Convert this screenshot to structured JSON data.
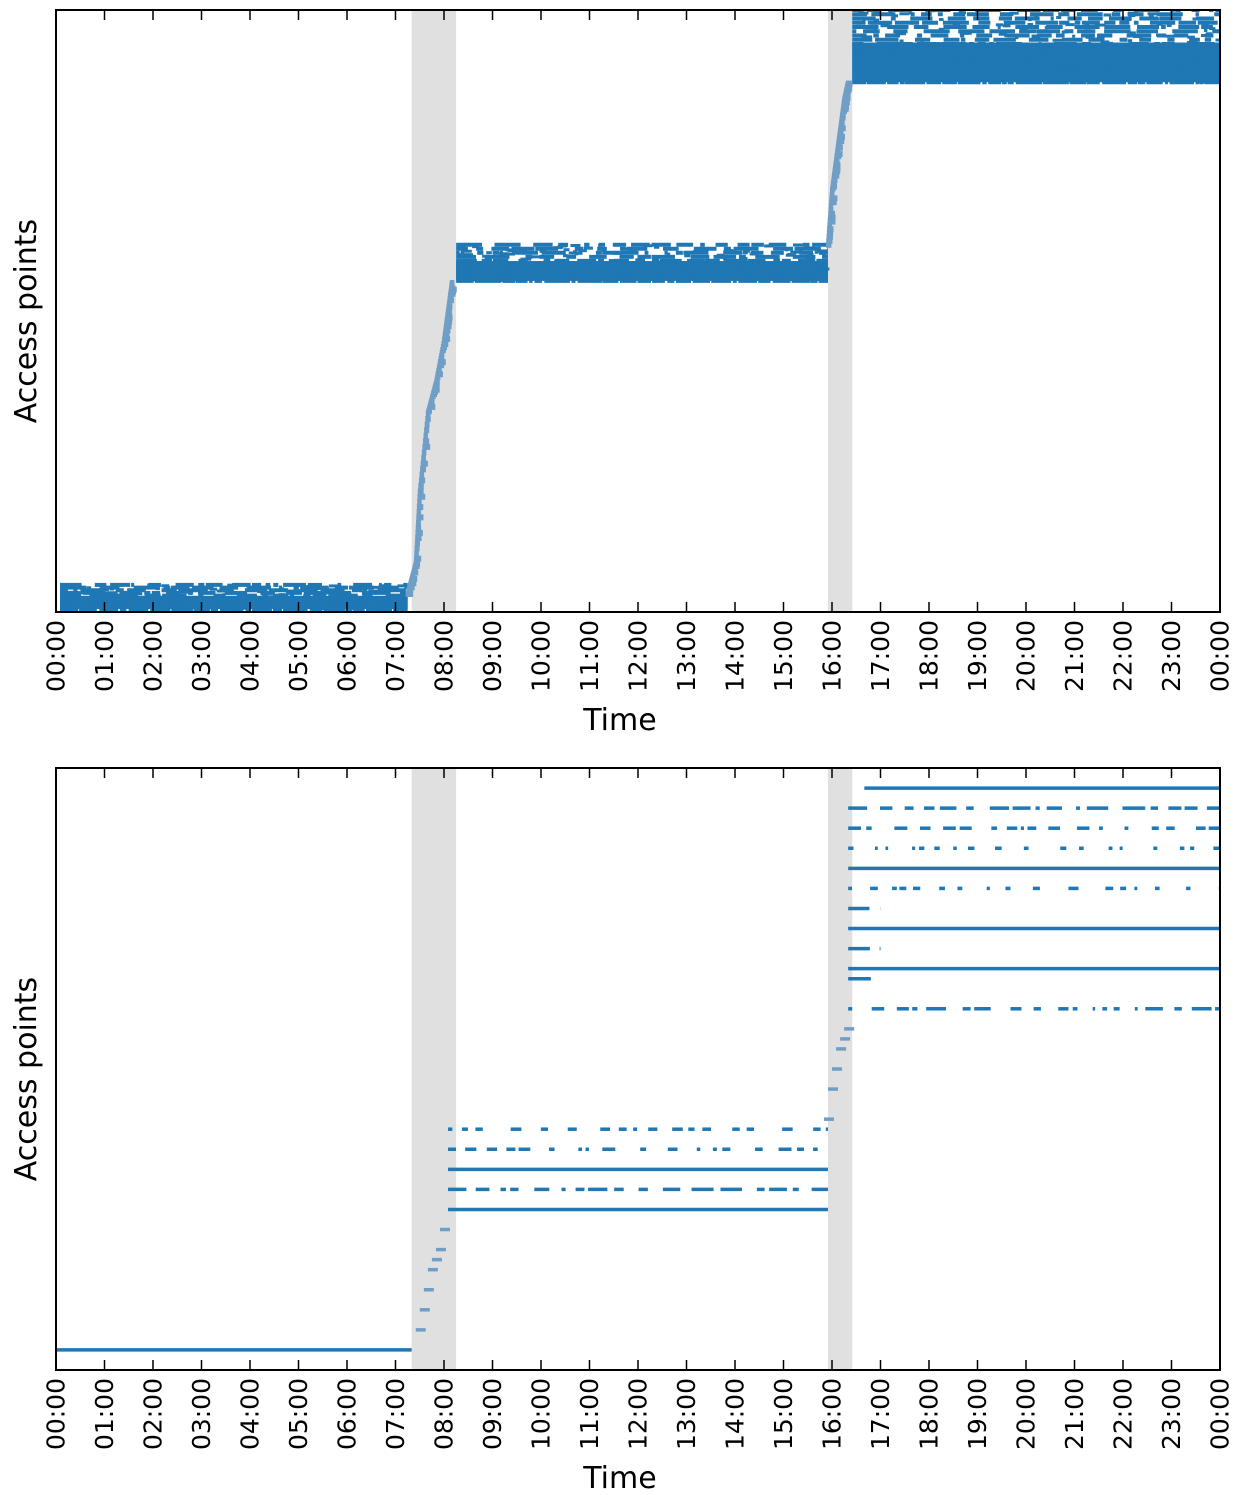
{
  "chart_data": [
    {
      "type": "scatter",
      "title": "",
      "xlabel": "Time",
      "ylabel": "Access points",
      "xlim": [
        "00:00",
        "24:00"
      ],
      "x_tick_labels": [
        "00:00",
        "01:00",
        "02:00",
        "03:00",
        "04:00",
        "05:00",
        "06:00",
        "07:00",
        "08:00",
        "09:00",
        "10:00",
        "11:00",
        "12:00",
        "13:00",
        "14:00",
        "15:00",
        "16:00",
        "17:00",
        "18:00",
        "19:00",
        "20:00",
        "21:00",
        "22:00",
        "23:00",
        "00:00"
      ],
      "y_ticks_shown": false,
      "grid": false,
      "legend": "none",
      "shaded_intervals": [
        [
          "07:20",
          "08:15"
        ],
        [
          "15:55",
          "16:25"
        ]
      ],
      "shade_color": "#e0e0e0",
      "point_color": "#1f77b4",
      "transition_color": "#6f9fc6",
      "bands": [
        {
          "x": [
            "00:05",
            "07:15"
          ],
          "y": [
            0.5,
            4.5
          ],
          "rows": 10
        },
        {
          "x": [
            "08:15",
            "15:55"
          ],
          "y": [
            55,
            61
          ],
          "rows": 10
        },
        {
          "x": [
            "16:25",
            "24:00"
          ],
          "y": [
            88,
            100
          ],
          "rows": 18
        }
      ],
      "transition_curves": [
        [
          [
            "07:15",
            3
          ],
          [
            "07:25",
            8
          ],
          [
            "07:30",
            20
          ],
          [
            "07:40",
            33
          ],
          [
            "07:50",
            38
          ],
          [
            "08:00",
            45
          ],
          [
            "08:05",
            50
          ],
          [
            "08:10",
            55
          ]
        ],
        [
          [
            "15:55",
            61
          ],
          [
            "16:00",
            70
          ],
          [
            "16:05",
            75
          ],
          [
            "16:10",
            80
          ],
          [
            "16:15",
            85
          ],
          [
            "16:20",
            88
          ]
        ]
      ],
      "y_range": [
        0,
        100
      ]
    },
    {
      "type": "scatter",
      "title": "",
      "xlabel": "Time",
      "ylabel": "Access points",
      "xlim": [
        "00:00",
        "24:00"
      ],
      "x_tick_labels": [
        "00:00",
        "01:00",
        "02:00",
        "03:00",
        "04:00",
        "05:00",
        "06:00",
        "07:00",
        "08:00",
        "09:00",
        "10:00",
        "11:00",
        "12:00",
        "13:00",
        "14:00",
        "15:00",
        "16:00",
        "17:00",
        "18:00",
        "19:00",
        "20:00",
        "21:00",
        "22:00",
        "23:00",
        "00:00"
      ],
      "y_ticks_shown": false,
      "grid": false,
      "legend": "none",
      "shaded_intervals": [
        [
          "07:20",
          "08:15"
        ],
        [
          "15:55",
          "16:25"
        ]
      ],
      "shade_color": "#e0e0e0",
      "point_color": "#1f77b4",
      "transition_color": "#6f9fc6",
      "y_range": [
        0,
        30
      ],
      "rows": [
        {
          "y": 1,
          "x": [
            "00:00",
            "07:20"
          ],
          "density": 1.0
        },
        {
          "y": 8,
          "x": [
            "08:05",
            "15:55"
          ],
          "density": 1.0
        },
        {
          "y": 9,
          "x": [
            "08:05",
            "15:55"
          ],
          "density": 0.7
        },
        {
          "y": 10,
          "x": [
            "08:05",
            "15:55"
          ],
          "density": 1.0
        },
        {
          "y": 11,
          "x": [
            "08:05",
            "15:55"
          ],
          "density": 0.4
        },
        {
          "y": 12,
          "x": [
            "08:05",
            "15:55"
          ],
          "density": 0.3
        },
        {
          "y": 18,
          "x": [
            "16:20",
            "24:00"
          ],
          "density": 0.6
        },
        {
          "y": 19.5,
          "x": [
            "16:20",
            "17:00"
          ],
          "density": 0.8
        },
        {
          "y": 20,
          "x": [
            "16:20",
            "24:00"
          ],
          "density": 1.0
        },
        {
          "y": 21,
          "x": [
            "16:20",
            "17:00"
          ],
          "density": 0.8
        },
        {
          "y": 22,
          "x": [
            "16:20",
            "24:00"
          ],
          "density": 1.0
        },
        {
          "y": 23,
          "x": [
            "16:20",
            "17:00"
          ],
          "density": 0.9
        },
        {
          "y": 24,
          "x": [
            "16:20",
            "24:00"
          ],
          "density": 0.3
        },
        {
          "y": 25,
          "x": [
            "16:20",
            "24:00"
          ],
          "density": 1.0
        },
        {
          "y": 26,
          "x": [
            "16:20",
            "24:00"
          ],
          "density": 0.15
        },
        {
          "y": 27,
          "x": [
            "16:20",
            "24:00"
          ],
          "density": 0.4
        },
        {
          "y": 28,
          "x": [
            "16:20",
            "24:00"
          ],
          "density": 0.7
        },
        {
          "y": 29,
          "x": [
            "16:40",
            "24:00"
          ],
          "density": 1.0
        }
      ],
      "transition_points": [
        {
          "x": "07:30",
          "y": 2
        },
        {
          "x": "07:35",
          "y": 3
        },
        {
          "x": "07:40",
          "y": 4
        },
        {
          "x": "07:45",
          "y": 5
        },
        {
          "x": "07:50",
          "y": 5.5
        },
        {
          "x": "07:55",
          "y": 6
        },
        {
          "x": "08:00",
          "y": 7
        },
        {
          "x": "15:55",
          "y": 12.5
        },
        {
          "x": "16:00",
          "y": 14
        },
        {
          "x": "16:05",
          "y": 15
        },
        {
          "x": "16:10",
          "y": 16
        },
        {
          "x": "16:15",
          "y": 16.5
        },
        {
          "x": "16:20",
          "y": 17
        }
      ]
    }
  ]
}
